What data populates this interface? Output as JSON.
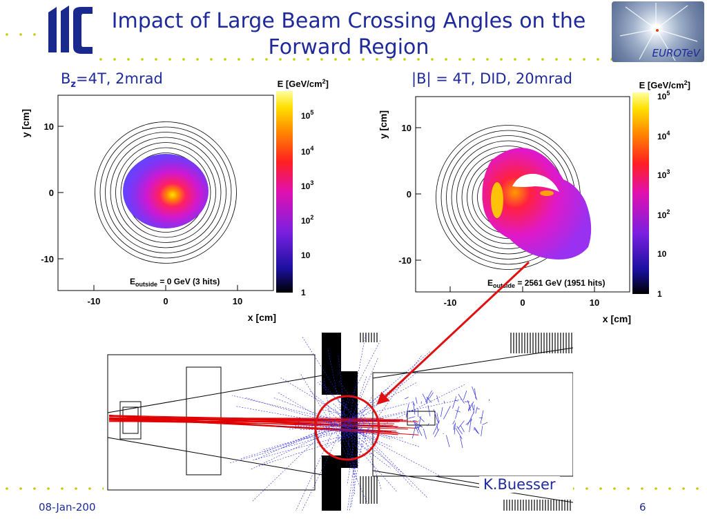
{
  "slide": {
    "title": "Impact of Large Beam Crossing Angles on the Forward Region",
    "date": "08-Jan-200",
    "page_number": "6",
    "author": "K.Buesser",
    "logos": {
      "left": "ilc",
      "right": "EUROTeV"
    }
  },
  "colors": {
    "title": "#1e2a9a",
    "dots": "#c8c800",
    "tracks_red": "#e00000",
    "tracks_blue": "#2a2ae0",
    "highlight": "#e01010"
  },
  "chart_data": [
    {
      "type": "heatmap",
      "title_main": "B",
      "title_sub": "z",
      "title_rest": "=4T, 2mrad",
      "xlabel": "x [cm]",
      "ylabel": "y [cm]",
      "zlabel": "E [GeV/cm",
      "zlabel_sup": "2",
      "zlabel_end": "]",
      "xlim": [
        -15,
        15
      ],
      "ylim": [
        -15,
        15
      ],
      "x_ticks": [
        "-10",
        "0",
        "10"
      ],
      "y_ticks": [
        "10",
        "0",
        "-10"
      ],
      "z_scale": "log",
      "z_ticks": [
        "10^5",
        "10^4",
        "10^3",
        "10^2",
        "10",
        "1"
      ],
      "annotation_main": "E",
      "annotation_sub": "outside",
      "annotation_rest": " = 0 GeV (3 hits)"
    },
    {
      "type": "heatmap",
      "title": "|B| = 4T, DID, 20mrad",
      "xlabel": "x [cm]",
      "ylabel": "y [cm]",
      "zlabel": "E [GeV/cm",
      "zlabel_sup": "2",
      "zlabel_end": "]",
      "xlim": [
        -15,
        15
      ],
      "ylim": [
        -15,
        15
      ],
      "x_ticks": [
        "-10",
        "0",
        "10"
      ],
      "y_ticks": [
        "10",
        "0",
        "-10"
      ],
      "z_scale": "log",
      "z_ticks": [
        "10^5",
        "10^4",
        "10^3",
        "10^2",
        "10",
        "1"
      ],
      "annotation_main": "E",
      "annotation_sub": "outside",
      "annotation_rest": " = 2561 GeV (1951 hits)"
    }
  ]
}
